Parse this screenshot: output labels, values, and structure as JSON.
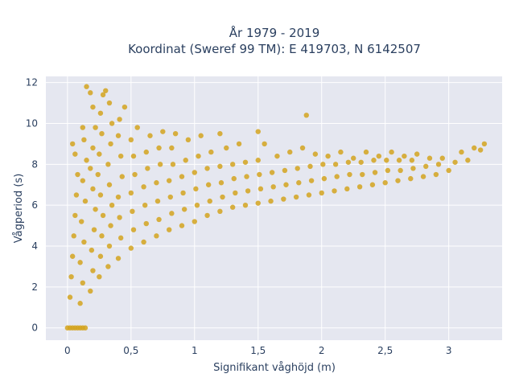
{
  "chart_data": {
    "type": "scatter",
    "title": "År 1979 - 2019",
    "subtitle": "Koordinat (Sweref 99 TM): E 419703, N 6142507",
    "xlabel": "Signifikant våghöjd (m)",
    "ylabel": "Vågperiod (s)",
    "xlim": [
      -0.17,
      3.42
    ],
    "ylim": [
      -0.6,
      12.3
    ],
    "x_ticks": [
      0,
      0.5,
      1,
      1.5,
      2,
      2.5,
      3
    ],
    "x_tick_labels": [
      "0",
      "0,5",
      "1",
      "1,5",
      "2",
      "2,5",
      "3"
    ],
    "y_ticks": [
      0,
      2,
      4,
      6,
      8,
      10,
      12
    ],
    "y_tick_labels": [
      "0",
      "2",
      "4",
      "6",
      "8",
      "10",
      "12"
    ],
    "grid": true,
    "legend": "none",
    "colors": {
      "marker": "#d4a31f",
      "plot_background": "#e5e7f0",
      "grid": "#ffffff",
      "text": "#2a3f5f"
    },
    "series": [
      {
        "points": [
          [
            0.0,
            0.0
          ],
          [
            0.02,
            0.0
          ],
          [
            0.04,
            0.0
          ],
          [
            0.06,
            0.0
          ],
          [
            0.08,
            0.0
          ],
          [
            0.1,
            0.0
          ],
          [
            0.12,
            0.0
          ],
          [
            0.14,
            0.0
          ],
          [
            0.02,
            1.5
          ],
          [
            0.03,
            2.5
          ],
          [
            0.04,
            3.5
          ],
          [
            0.05,
            4.5
          ],
          [
            0.06,
            5.5
          ],
          [
            0.07,
            6.5
          ],
          [
            0.08,
            7.5
          ],
          [
            0.06,
            8.5
          ],
          [
            0.04,
            9.0
          ],
          [
            0.1,
            1.2
          ],
          [
            0.12,
            2.2
          ],
          [
            0.1,
            3.2
          ],
          [
            0.13,
            4.2
          ],
          [
            0.11,
            5.2
          ],
          [
            0.14,
            6.2
          ],
          [
            0.12,
            7.2
          ],
          [
            0.15,
            8.2
          ],
          [
            0.13,
            9.2
          ],
          [
            0.12,
            9.8
          ],
          [
            0.18,
            1.8
          ],
          [
            0.2,
            2.8
          ],
          [
            0.19,
            3.8
          ],
          [
            0.21,
            4.8
          ],
          [
            0.22,
            5.8
          ],
          [
            0.2,
            6.8
          ],
          [
            0.18,
            7.8
          ],
          [
            0.2,
            8.8
          ],
          [
            0.22,
            9.8
          ],
          [
            0.2,
            10.8
          ],
          [
            0.18,
            11.5
          ],
          [
            0.15,
            11.8
          ],
          [
            0.25,
            2.5
          ],
          [
            0.26,
            3.5
          ],
          [
            0.27,
            4.5
          ],
          [
            0.28,
            5.5
          ],
          [
            0.26,
            6.5
          ],
          [
            0.24,
            7.5
          ],
          [
            0.25,
            8.5
          ],
          [
            0.27,
            9.5
          ],
          [
            0.26,
            10.5
          ],
          [
            0.28,
            11.4
          ],
          [
            0.3,
            11.6
          ],
          [
            0.32,
            3.0
          ],
          [
            0.33,
            4.0
          ],
          [
            0.34,
            5.0
          ],
          [
            0.35,
            6.0
          ],
          [
            0.33,
            7.0
          ],
          [
            0.32,
            8.0
          ],
          [
            0.34,
            9.0
          ],
          [
            0.35,
            10.0
          ],
          [
            0.33,
            11.0
          ],
          [
            0.4,
            3.4
          ],
          [
            0.42,
            4.4
          ],
          [
            0.41,
            5.4
          ],
          [
            0.4,
            6.4
          ],
          [
            0.43,
            7.4
          ],
          [
            0.42,
            8.4
          ],
          [
            0.4,
            9.4
          ],
          [
            0.41,
            10.2
          ],
          [
            0.45,
            10.8
          ],
          [
            0.5,
            3.9
          ],
          [
            0.52,
            4.8
          ],
          [
            0.51,
            5.7
          ],
          [
            0.5,
            6.6
          ],
          [
            0.53,
            7.5
          ],
          [
            0.52,
            8.4
          ],
          [
            0.5,
            9.2
          ],
          [
            0.55,
            9.8
          ],
          [
            0.6,
            4.2
          ],
          [
            0.62,
            5.1
          ],
          [
            0.61,
            6.0
          ],
          [
            0.6,
            6.9
          ],
          [
            0.63,
            7.8
          ],
          [
            0.62,
            8.6
          ],
          [
            0.65,
            9.4
          ],
          [
            0.7,
            4.5
          ],
          [
            0.72,
            5.3
          ],
          [
            0.71,
            6.2
          ],
          [
            0.7,
            7.1
          ],
          [
            0.73,
            8.0
          ],
          [
            0.72,
            8.8
          ],
          [
            0.75,
            9.6
          ],
          [
            0.8,
            4.8
          ],
          [
            0.82,
            5.6
          ],
          [
            0.81,
            6.4
          ],
          [
            0.8,
            7.2
          ],
          [
            0.83,
            8.0
          ],
          [
            0.82,
            8.8
          ],
          [
            0.85,
            9.5
          ],
          [
            0.9,
            5.0
          ],
          [
            0.92,
            5.8
          ],
          [
            0.91,
            6.6
          ],
          [
            0.9,
            7.4
          ],
          [
            0.93,
            8.2
          ],
          [
            0.95,
            9.2
          ],
          [
            1.0,
            5.2
          ],
          [
            1.02,
            6.0
          ],
          [
            1.01,
            6.8
          ],
          [
            1.0,
            7.6
          ],
          [
            1.03,
            8.4
          ],
          [
            1.05,
            9.4
          ],
          [
            1.1,
            5.5
          ],
          [
            1.12,
            6.2
          ],
          [
            1.11,
            7.0
          ],
          [
            1.1,
            7.8
          ],
          [
            1.13,
            8.6
          ],
          [
            1.2,
            9.5
          ],
          [
            1.2,
            5.7
          ],
          [
            1.22,
            6.4
          ],
          [
            1.21,
            7.1
          ],
          [
            1.2,
            7.9
          ],
          [
            1.25,
            8.8
          ],
          [
            1.3,
            5.9
          ],
          [
            1.32,
            6.6
          ],
          [
            1.31,
            7.3
          ],
          [
            1.3,
            8.0
          ],
          [
            1.35,
            9.0
          ],
          [
            1.4,
            6.0
          ],
          [
            1.42,
            6.7
          ],
          [
            1.41,
            7.4
          ],
          [
            1.4,
            8.1
          ],
          [
            1.5,
            9.6
          ],
          [
            1.5,
            6.1
          ],
          [
            1.52,
            6.8
          ],
          [
            1.51,
            7.5
          ],
          [
            1.5,
            8.2
          ],
          [
            1.55,
            9.0
          ],
          [
            1.6,
            6.2
          ],
          [
            1.62,
            6.9
          ],
          [
            1.61,
            7.6
          ],
          [
            1.65,
            8.4
          ],
          [
            1.7,
            6.3
          ],
          [
            1.72,
            7.0
          ],
          [
            1.71,
            7.7
          ],
          [
            1.75,
            8.6
          ],
          [
            1.8,
            6.4
          ],
          [
            1.82,
            7.1
          ],
          [
            1.81,
            7.8
          ],
          [
            1.85,
            8.8
          ],
          [
            1.88,
            10.4
          ],
          [
            1.9,
            6.5
          ],
          [
            1.92,
            7.2
          ],
          [
            1.91,
            7.9
          ],
          [
            1.95,
            8.5
          ],
          [
            2.0,
            6.6
          ],
          [
            2.02,
            7.3
          ],
          [
            2.01,
            8.0
          ],
          [
            2.05,
            8.4
          ],
          [
            2.1,
            6.7
          ],
          [
            2.12,
            7.4
          ],
          [
            2.11,
            8.0
          ],
          [
            2.15,
            8.6
          ],
          [
            2.2,
            6.8
          ],
          [
            2.22,
            7.5
          ],
          [
            2.21,
            8.1
          ],
          [
            2.25,
            8.3
          ],
          [
            2.3,
            6.9
          ],
          [
            2.32,
            7.5
          ],
          [
            2.31,
            8.1
          ],
          [
            2.35,
            8.6
          ],
          [
            2.4,
            7.0
          ],
          [
            2.42,
            7.6
          ],
          [
            2.41,
            8.2
          ],
          [
            2.45,
            8.4
          ],
          [
            2.5,
            7.1
          ],
          [
            2.52,
            7.7
          ],
          [
            2.51,
            8.2
          ],
          [
            2.55,
            8.6
          ],
          [
            2.6,
            7.2
          ],
          [
            2.62,
            7.7
          ],
          [
            2.61,
            8.2
          ],
          [
            2.65,
            8.4
          ],
          [
            2.7,
            7.3
          ],
          [
            2.72,
            7.8
          ],
          [
            2.71,
            8.2
          ],
          [
            2.75,
            8.5
          ],
          [
            2.8,
            7.4
          ],
          [
            2.82,
            7.9
          ],
          [
            2.85,
            8.3
          ],
          [
            2.9,
            7.5
          ],
          [
            2.92,
            8.0
          ],
          [
            2.95,
            8.3
          ],
          [
            3.0,
            7.7
          ],
          [
            3.05,
            8.1
          ],
          [
            3.1,
            8.6
          ],
          [
            3.15,
            8.2
          ],
          [
            3.2,
            8.8
          ],
          [
            3.25,
            8.7
          ],
          [
            3.28,
            9.0
          ]
        ]
      }
    ]
  }
}
